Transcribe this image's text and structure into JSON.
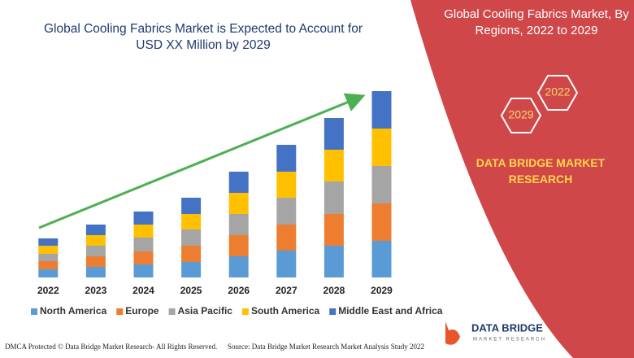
{
  "chart_data": {
    "type": "bar",
    "stacked": true,
    "title": "Global Cooling Fabrics Market is Expected to Account for USD XX Million by 2029",
    "categories": [
      "2022",
      "2023",
      "2024",
      "2025",
      "2026",
      "2027",
      "2028",
      "2029"
    ],
    "series": [
      {
        "name": "North America",
        "color": "#5b9bd5",
        "values": [
          10,
          13,
          16,
          19,
          26,
          33,
          39,
          45
        ]
      },
      {
        "name": "Europe",
        "color": "#ed7d31",
        "values": [
          10,
          13,
          16,
          20,
          26,
          32,
          39,
          46
        ]
      },
      {
        "name": "Asia Pacific",
        "color": "#a5a5a5",
        "values": [
          9,
          13,
          17,
          20,
          26,
          33,
          40,
          46
        ]
      },
      {
        "name": "South America",
        "color": "#ffc000",
        "values": [
          10,
          13,
          16,
          19,
          26,
          32,
          39,
          46
        ]
      },
      {
        "name": "Middle East and Africa",
        "color": "#4472c4",
        "values": [
          9,
          13,
          16,
          20,
          26,
          33,
          39,
          46
        ]
      }
    ],
    "ylim": [
      0,
      240
    ],
    "legend": "bottom"
  },
  "panel": {
    "title": "Global Cooling Fabrics Market, By Regions, 2022 to 2029",
    "hexagons": [
      "2022",
      "2029"
    ],
    "brand": "DATA BRIDGE MARKET RESEARCH",
    "logo": "DATA BRIDGE",
    "logo_sub": "MARKET RESEARCH"
  },
  "footer": {
    "left": "DMCA Protected © Data Bridge Market Research- All Rights Reserved.",
    "right": "Source: Data Bridge Market Research Market Analysis Study 2022"
  }
}
